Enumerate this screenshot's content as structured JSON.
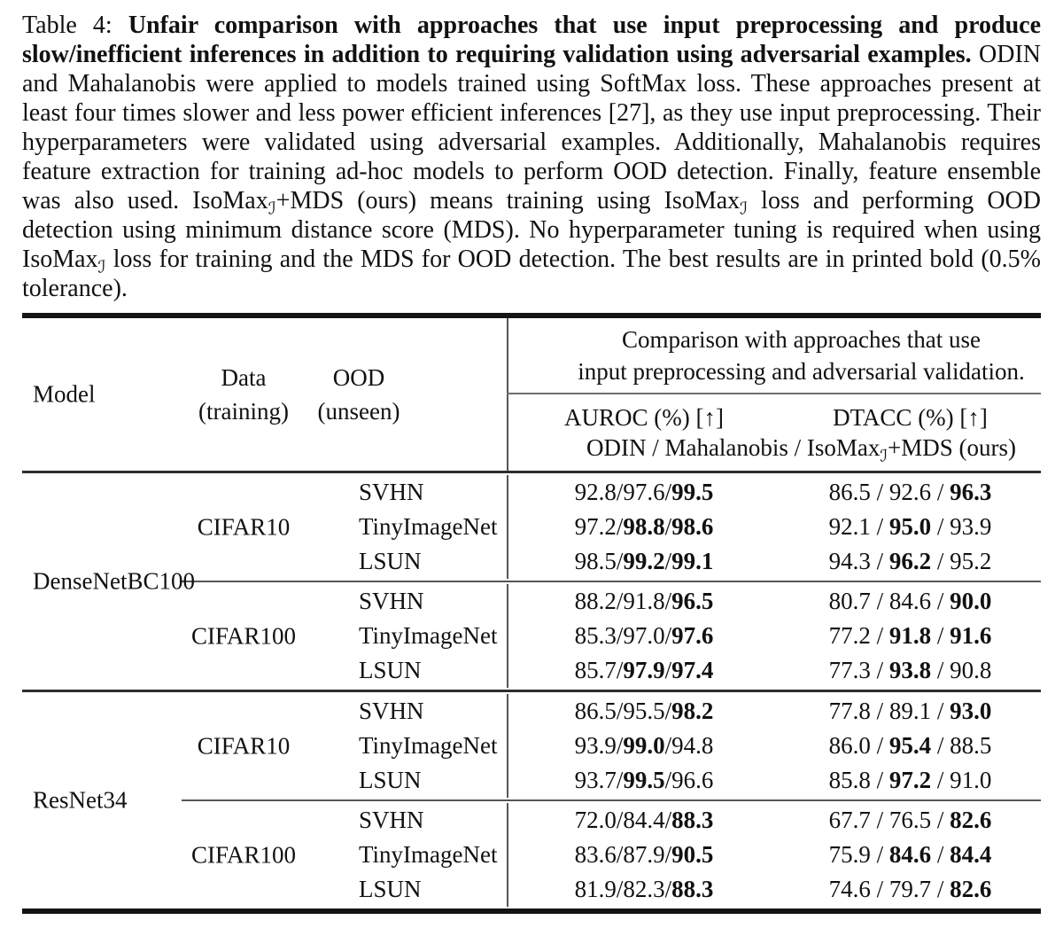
{
  "caption": {
    "label": "Table 4: ",
    "bold": "Unfair comparison with approaches that use input preprocessing and produce slow/inefficient inferences in addition to requiring validation using adversarial examples.",
    "seg1": " ODIN and Mahalanobis were applied to models trained using SoftMax loss. These approaches present at least four times slower and less power efficient inferences [27], as they use input preprocessing. Their hyperparameters were validated using adversarial examples. Additionally, Mahalanobis requires feature extraction for training ad-hoc models to perform OOD detection. Finally, feature ensemble was also used. IsoMax",
    "sub1": "ℐ",
    "seg2": "+MDS (ours) means training using IsoMax",
    "sub2": "ℐ",
    "seg3": " loss and performing OOD detection using minimum distance score (MDS). No hyperparameter tuning is required when using IsoMax",
    "sub3": "ℐ",
    "seg4": " loss for training and the MDS for OOD detection. The best results are in printed bold (0.5% tolerance)."
  },
  "header": {
    "model": "Model",
    "data_line1": "Data",
    "data_line2": "(training)",
    "ood_line1": "OOD",
    "ood_line2": "(unseen)",
    "group_line1": "Comparison with approaches that use",
    "group_line2": "input preprocessing and adversarial validation.",
    "auroc": "AUROC (%) [↑]",
    "dtacc": "DTACC (%) [↑]",
    "methods_seg1": "ODIN / Mahalanobis / IsoMax",
    "methods_sub": "ℐ",
    "methods_seg2": "+MDS (ours)"
  },
  "sep": " / ",
  "colors": {
    "text": "#111111",
    "rule_dark": "#141414",
    "rule_gray": "#565656"
  },
  "groups": [
    {
      "model": "DenseNetBC100",
      "blocks": [
        {
          "data": "CIFAR10",
          "rows": [
            {
              "ood": "SVHN",
              "auroc": {
                "v": [
                  "92.8",
                  "97.6",
                  "99.5"
                ],
                "b": [
                  false,
                  false,
                  true
                ]
              },
              "dtacc": {
                "v": [
                  "86.5",
                  "92.6",
                  "96.3"
                ],
                "b": [
                  false,
                  false,
                  true
                ]
              }
            },
            {
              "ood": "TinyImageNet",
              "auroc": {
                "v": [
                  "97.2",
                  "98.8",
                  "98.6"
                ],
                "b": [
                  false,
                  true,
                  true
                ]
              },
              "dtacc": {
                "v": [
                  "92.1",
                  "95.0",
                  "93.9"
                ],
                "b": [
                  false,
                  true,
                  false
                ]
              }
            },
            {
              "ood": "LSUN",
              "auroc": {
                "v": [
                  "98.5",
                  "99.2",
                  "99.1"
                ],
                "b": [
                  false,
                  true,
                  true
                ]
              },
              "dtacc": {
                "v": [
                  "94.3",
                  "96.2",
                  "95.2"
                ],
                "b": [
                  false,
                  true,
                  false
                ]
              }
            }
          ]
        },
        {
          "data": "CIFAR100",
          "rows": [
            {
              "ood": "SVHN",
              "auroc": {
                "v": [
                  "88.2",
                  "91.8",
                  "96.5"
                ],
                "b": [
                  false,
                  false,
                  true
                ]
              },
              "dtacc": {
                "v": [
                  "80.7",
                  "84.6",
                  "90.0"
                ],
                "b": [
                  false,
                  false,
                  true
                ]
              }
            },
            {
              "ood": "TinyImageNet",
              "auroc": {
                "v": [
                  "85.3",
                  "97.0",
                  "97.6"
                ],
                "b": [
                  false,
                  false,
                  true
                ]
              },
              "dtacc": {
                "v": [
                  "77.2",
                  "91.8",
                  "91.6"
                ],
                "b": [
                  false,
                  true,
                  true
                ]
              }
            },
            {
              "ood": "LSUN",
              "auroc": {
                "v": [
                  "85.7",
                  "97.9",
                  "97.4"
                ],
                "b": [
                  false,
                  true,
                  true
                ]
              },
              "dtacc": {
                "v": [
                  "77.3",
                  "93.8",
                  "90.8"
                ],
                "b": [
                  false,
                  true,
                  false
                ]
              }
            }
          ]
        }
      ]
    },
    {
      "model": "ResNet34",
      "blocks": [
        {
          "data": "CIFAR10",
          "rows": [
            {
              "ood": "SVHN",
              "auroc": {
                "v": [
                  "86.5",
                  "95.5",
                  "98.2"
                ],
                "b": [
                  false,
                  false,
                  true
                ]
              },
              "dtacc": {
                "v": [
                  "77.8",
                  "89.1",
                  "93.0"
                ],
                "b": [
                  false,
                  false,
                  true
                ]
              }
            },
            {
              "ood": "TinyImageNet",
              "auroc": {
                "v": [
                  "93.9",
                  "99.0",
                  "94.8"
                ],
                "b": [
                  false,
                  true,
                  false
                ]
              },
              "dtacc": {
                "v": [
                  "86.0",
                  "95.4",
                  "88.5"
                ],
                "b": [
                  false,
                  true,
                  false
                ]
              }
            },
            {
              "ood": "LSUN",
              "auroc": {
                "v": [
                  "93.7",
                  "99.5",
                  "96.6"
                ],
                "b": [
                  false,
                  true,
                  false
                ]
              },
              "dtacc": {
                "v": [
                  "85.8",
                  "97.2",
                  "91.0"
                ],
                "b": [
                  false,
                  true,
                  false
                ]
              }
            }
          ]
        },
        {
          "data": "CIFAR100",
          "rows": [
            {
              "ood": "SVHN",
              "auroc": {
                "v": [
                  "72.0",
                  "84.4",
                  "88.3"
                ],
                "b": [
                  false,
                  false,
                  true
                ]
              },
              "dtacc": {
                "v": [
                  "67.7",
                  "76.5",
                  "82.6"
                ],
                "b": [
                  false,
                  false,
                  true
                ]
              }
            },
            {
              "ood": "TinyImageNet",
              "auroc": {
                "v": [
                  "83.6",
                  "87.9",
                  "90.5"
                ],
                "b": [
                  false,
                  false,
                  true
                ]
              },
              "dtacc": {
                "v": [
                  "75.9",
                  "84.6",
                  "84.4"
                ],
                "b": [
                  false,
                  true,
                  true
                ]
              }
            },
            {
              "ood": "LSUN",
              "auroc": {
                "v": [
                  "81.9",
                  "82.3",
                  "88.3"
                ],
                "b": [
                  false,
                  false,
                  true
                ]
              },
              "dtacc": {
                "v": [
                  "74.6",
                  "79.7",
                  "82.6"
                ],
                "b": [
                  false,
                  false,
                  true
                ]
              }
            }
          ]
        }
      ]
    }
  ]
}
